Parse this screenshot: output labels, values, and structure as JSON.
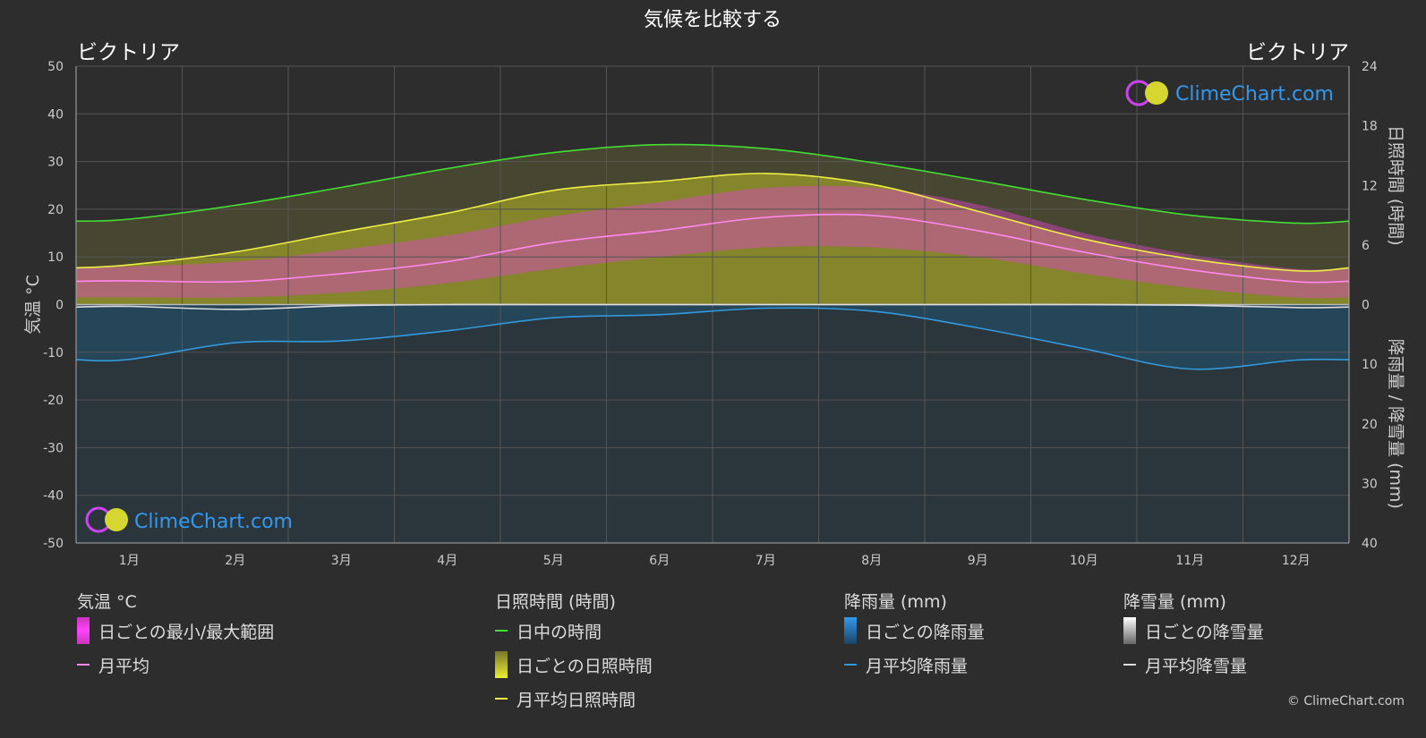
{
  "header": {
    "title": "気候を比較する"
  },
  "location_left": "ビクトリア",
  "location_right": "ビクトリア",
  "logo_text": "ClimeChart.com",
  "copyright": "© ClimeChart.com",
  "colors": {
    "background": "#2d2d2d",
    "daylight": "#44dd33",
    "sunshine": "#eeee44",
    "sunshine_fill": "#9a9a2a",
    "temp_band": "#dd44cc",
    "temp_mean": "#ff88ee",
    "rain": "#3399dd",
    "rain_fill": "#1f5a80",
    "snow": "#dddddd",
    "grid": "#555555",
    "logo": "#3399ee"
  },
  "chart_data": {
    "type": "line",
    "x_months": [
      "1月",
      "2月",
      "3月",
      "4月",
      "5月",
      "6月",
      "7月",
      "8月",
      "9月",
      "10月",
      "11月",
      "12月"
    ],
    "axes": {
      "left": {
        "label": "気温 °C",
        "ticks": [
          50,
          40,
          30,
          20,
          10,
          0,
          -10,
          -20,
          -30,
          -40,
          -50
        ],
        "range": [
          -50,
          50
        ]
      },
      "right_top": {
        "label": "日照時間 (時間)",
        "ticks": [
          24,
          18,
          12,
          6,
          0
        ],
        "range": [
          0,
          24
        ]
      },
      "right_bottom": {
        "label": "降雨量 / 降雪量 (mm)",
        "ticks": [
          0,
          10,
          20,
          30,
          40
        ],
        "range": [
          0,
          40
        ]
      }
    },
    "series": [
      {
        "name": "日中の時間",
        "axis": "right_top",
        "values": [
          8.6,
          10.0,
          11.8,
          13.7,
          15.3,
          16.1,
          15.7,
          14.3,
          12.5,
          10.6,
          9.0,
          8.2
        ]
      },
      {
        "name": "月平均日照時間",
        "axis": "right_top",
        "values": [
          4.0,
          5.3,
          7.3,
          9.2,
          11.5,
          12.4,
          13.2,
          12.1,
          9.4,
          6.6,
          4.6,
          3.4
        ]
      },
      {
        "name": "月平均",
        "axis": "left",
        "values": [
          5.0,
          4.8,
          6.5,
          9.0,
          13.0,
          15.5,
          18.3,
          18.7,
          15.5,
          11.0,
          7.3,
          4.8
        ]
      },
      {
        "name": "temp_min",
        "axis": "left",
        "values": [
          1.5,
          1.5,
          2.5,
          4.5,
          7.5,
          10.0,
          12.0,
          12.0,
          10.0,
          6.5,
          3.5,
          1.5
        ]
      },
      {
        "name": "temp_max",
        "axis": "left",
        "values": [
          8.0,
          9.0,
          11.5,
          14.5,
          18.5,
          21.5,
          24.5,
          24.5,
          21.0,
          15.0,
          10.5,
          7.5
        ]
      },
      {
        "name": "月平均降雨量",
        "axis": "right_bottom",
        "values": [
          9.2,
          6.4,
          6.1,
          4.4,
          2.2,
          1.7,
          0.6,
          1.1,
          3.9,
          7.4,
          10.8,
          9.3
        ]
      },
      {
        "name": "月平均降雪量",
        "axis": "right_bottom",
        "values": [
          0.3,
          0.8,
          0.2,
          0.0,
          0.0,
          0.0,
          0.0,
          0.0,
          0.0,
          0.0,
          0.1,
          0.5
        ]
      }
    ]
  },
  "legend": {
    "temperature": {
      "title": "気温 °C",
      "items": [
        "日ごとの最小/最大範囲",
        "月平均"
      ]
    },
    "sunshine": {
      "title": "日照時間 (時間)",
      "items": [
        "日中の時間",
        "日ごとの日照時間",
        "月平均日照時間"
      ]
    },
    "rain": {
      "title": "降雨量 (mm)",
      "items": [
        "日ごとの降雨量",
        "月平均降雨量"
      ]
    },
    "snow": {
      "title": "降雪量 (mm)",
      "items": [
        "日ごとの降雪量",
        "月平均降雪量"
      ]
    }
  }
}
